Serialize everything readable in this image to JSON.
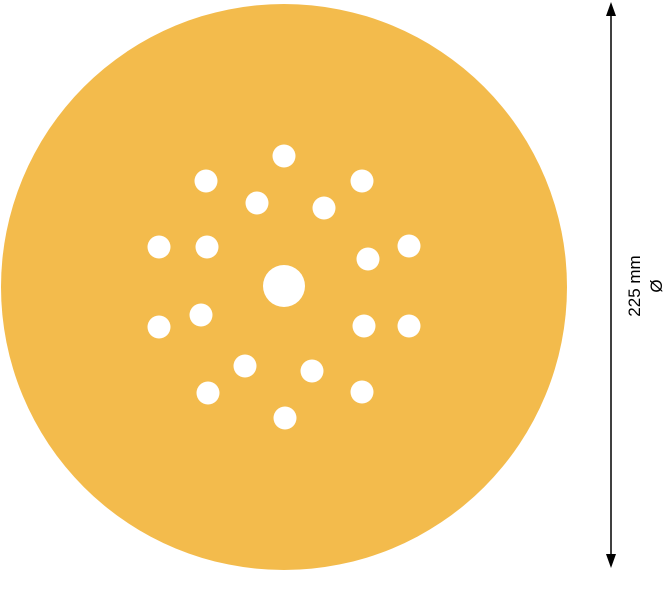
{
  "product": {
    "disc_color": "#f3bb4c",
    "holes_count": 18,
    "center_hole": true
  },
  "dimension": {
    "value_label": "225 mm",
    "symbol_label": "Ø",
    "line_color": "#000000"
  }
}
